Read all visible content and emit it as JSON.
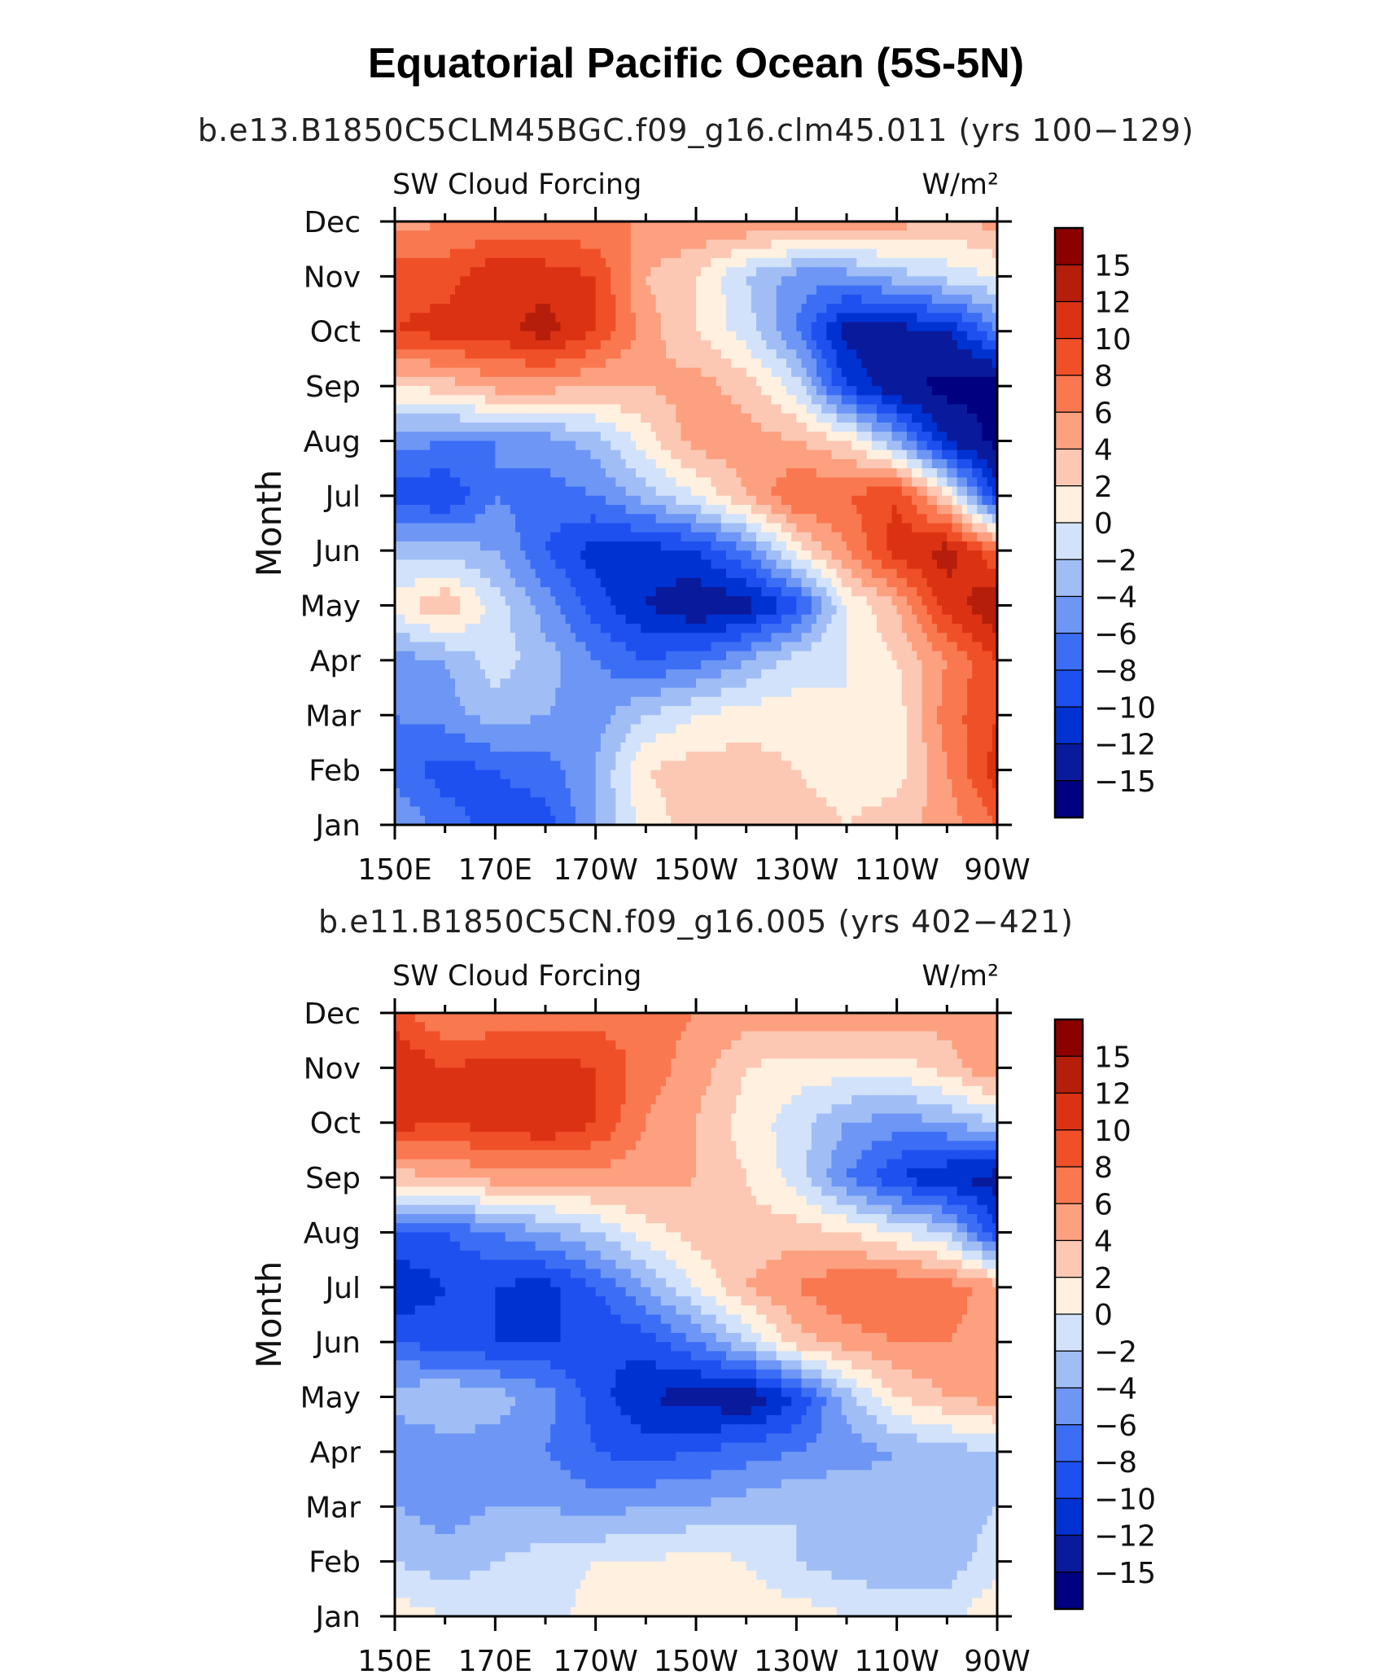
{
  "page": {
    "title": "Equatorial Pacific Ocean (5S-5N)"
  },
  "chart_data": [
    {
      "type": "heatmap",
      "subtitle": "b.e13.B1850C5CLM45BGC.f09_g16.clm45.011 (yrs 100−129)",
      "left_label": "SW Cloud Forcing",
      "right_label": "W/m²",
      "ylabel": "Month",
      "x_ticks": [
        "150E",
        "170E",
        "170W",
        "150W",
        "130W",
        "110W",
        "90W"
      ],
      "y_ticks": [
        "Jan",
        "Feb",
        "Mar",
        "Apr",
        "May",
        "Jun",
        "Jul",
        "Aug",
        "Sep",
        "Oct",
        "Nov",
        "Dec"
      ],
      "colorbar_labels": [
        "15",
        "12",
        "10",
        "8",
        "6",
        "4",
        "2",
        "0",
        "−2",
        "−4",
        "−6",
        "−8",
        "−10",
        "−12",
        "−15"
      ],
      "longitudes": [
        150,
        160,
        170,
        180,
        190,
        200,
        210,
        220,
        230,
        240,
        250,
        260,
        270
      ],
      "grid": [
        [
          -4,
          -7,
          -9,
          -9,
          -4,
          1,
          3,
          4,
          3,
          2,
          3,
          5,
          8
        ],
        [
          -7,
          -9,
          -8,
          -7,
          -4,
          2,
          3,
          3,
          2,
          1,
          1,
          6,
          11
        ],
        [
          -6,
          -5,
          -3,
          -4,
          -5,
          -2,
          0,
          1,
          1,
          0,
          1,
          7,
          10
        ],
        [
          -5,
          -4,
          -1,
          -3,
          -6,
          -8,
          -7,
          -4,
          -1,
          0,
          2,
          6,
          10
        ],
        [
          1,
          4,
          -1,
          -5,
          -9,
          -12,
          -14,
          -13,
          -9,
          0,
          4,
          11,
          14
        ],
        [
          -3,
          -3,
          -4,
          -8,
          -11,
          -11,
          -10,
          -6,
          1,
          6,
          11,
          13,
          8
        ],
        [
          -9,
          -10,
          -6,
          -7,
          -6,
          -3,
          0,
          4,
          8,
          8,
          10,
          2,
          -11
        ],
        [
          -5,
          -6,
          -6,
          -5,
          -3,
          1,
          5,
          5,
          4,
          2,
          -4,
          -12,
          -16
        ],
        [
          2,
          3,
          5,
          5,
          4,
          4,
          5,
          3,
          -1,
          -10,
          -14,
          -16,
          -16
        ],
        [
          10,
          11,
          11,
          13,
          10,
          5,
          2,
          -1,
          -6,
          -13,
          -13,
          -12,
          -6
        ],
        [
          9,
          9,
          12,
          11,
          10,
          4,
          2,
          -2,
          -5,
          -5,
          -3,
          -1,
          0
        ],
        [
          5,
          6,
          6,
          7,
          6,
          6,
          6,
          6,
          6,
          6,
          5,
          3,
          5
        ]
      ],
      "xlim": [
        150,
        270
      ],
      "ylim": [
        "Jan",
        "Dec"
      ]
    },
    {
      "type": "heatmap",
      "subtitle": "b.e11.B1850C5CN.f09_g16.005 (yrs 402−421)",
      "left_label": "SW Cloud Forcing",
      "right_label": "W/m²",
      "ylabel": "Month",
      "x_ticks": [
        "150E",
        "170E",
        "170W",
        "150W",
        "130W",
        "110W",
        "90W"
      ],
      "y_ticks": [
        "Jan",
        "Feb",
        "Mar",
        "Apr",
        "May",
        "Jun",
        "Jul",
        "Aug",
        "Sep",
        "Oct",
        "Nov",
        "Dec"
      ],
      "colorbar_labels": [
        "15",
        "12",
        "10",
        "8",
        "6",
        "4",
        "2",
        "0",
        "−2",
        "−4",
        "−6",
        "−8",
        "−10",
        "−12",
        "−15"
      ],
      "longitudes": [
        150,
        160,
        170,
        180,
        190,
        200,
        210,
        220,
        230,
        240,
        250,
        260,
        270
      ],
      "grid": [
        [
          1,
          0,
          -1,
          -1,
          1,
          2,
          2,
          1,
          1,
          0,
          0,
          -1,
          2
        ],
        [
          -2,
          -3,
          -2,
          -1,
          0,
          0,
          1,
          0,
          -2,
          -3,
          -4,
          -3,
          -1
        ],
        [
          -4,
          -5,
          -4,
          -4,
          -5,
          -4,
          -4,
          -3,
          -2,
          -2,
          -3,
          -3,
          -2
        ],
        [
          -6,
          -5,
          -5,
          -6,
          -8,
          -9,
          -8,
          -7,
          -6,
          -5,
          -4,
          -3,
          -2
        ],
        [
          -3,
          -2,
          -3,
          -5,
          -9,
          -12,
          -13,
          -14,
          -10,
          -3,
          2,
          4,
          5
        ],
        [
          -8,
          -9,
          -10,
          -10,
          -10,
          -9,
          -6,
          -2,
          3,
          5,
          6,
          6,
          5
        ],
        [
          -12,
          -10,
          -10,
          -11,
          -8,
          -4,
          0,
          4,
          6,
          8,
          8,
          7,
          5
        ],
        [
          -8,
          -8,
          -6,
          -4,
          -2,
          1,
          3,
          3,
          3,
          2,
          0,
          -2,
          -10
        ],
        [
          3,
          4,
          5,
          5,
          5,
          5,
          4,
          2,
          -1,
          -6,
          -10,
          -12,
          -13
        ],
        [
          11,
          10,
          11,
          12,
          10,
          6,
          4,
          1,
          -1,
          -4,
          -5,
          -4,
          -2
        ],
        [
          12,
          10,
          11,
          11,
          10,
          7,
          5,
          2,
          1,
          1,
          1,
          3,
          6
        ],
        [
          9,
          6,
          6,
          7,
          7,
          7,
          6,
          5,
          5,
          5,
          5,
          5,
          6
        ]
      ],
      "xlim": [
        150,
        270
      ],
      "ylim": [
        "Jan",
        "Dec"
      ]
    }
  ],
  "colors": {
    "levels_low_to_high": [
      "#000080",
      "#0a1a9c",
      "#0032d2",
      "#1e50f0",
      "#3c6ef5",
      "#6e96f5",
      "#a0bef5",
      "#d2e2fa",
      "#fff0e0",
      "#fcc8b4",
      "#fca080",
      "#f97850",
      "#f05028",
      "#dc3214",
      "#b41e0a",
      "#8c0000"
    ]
  }
}
